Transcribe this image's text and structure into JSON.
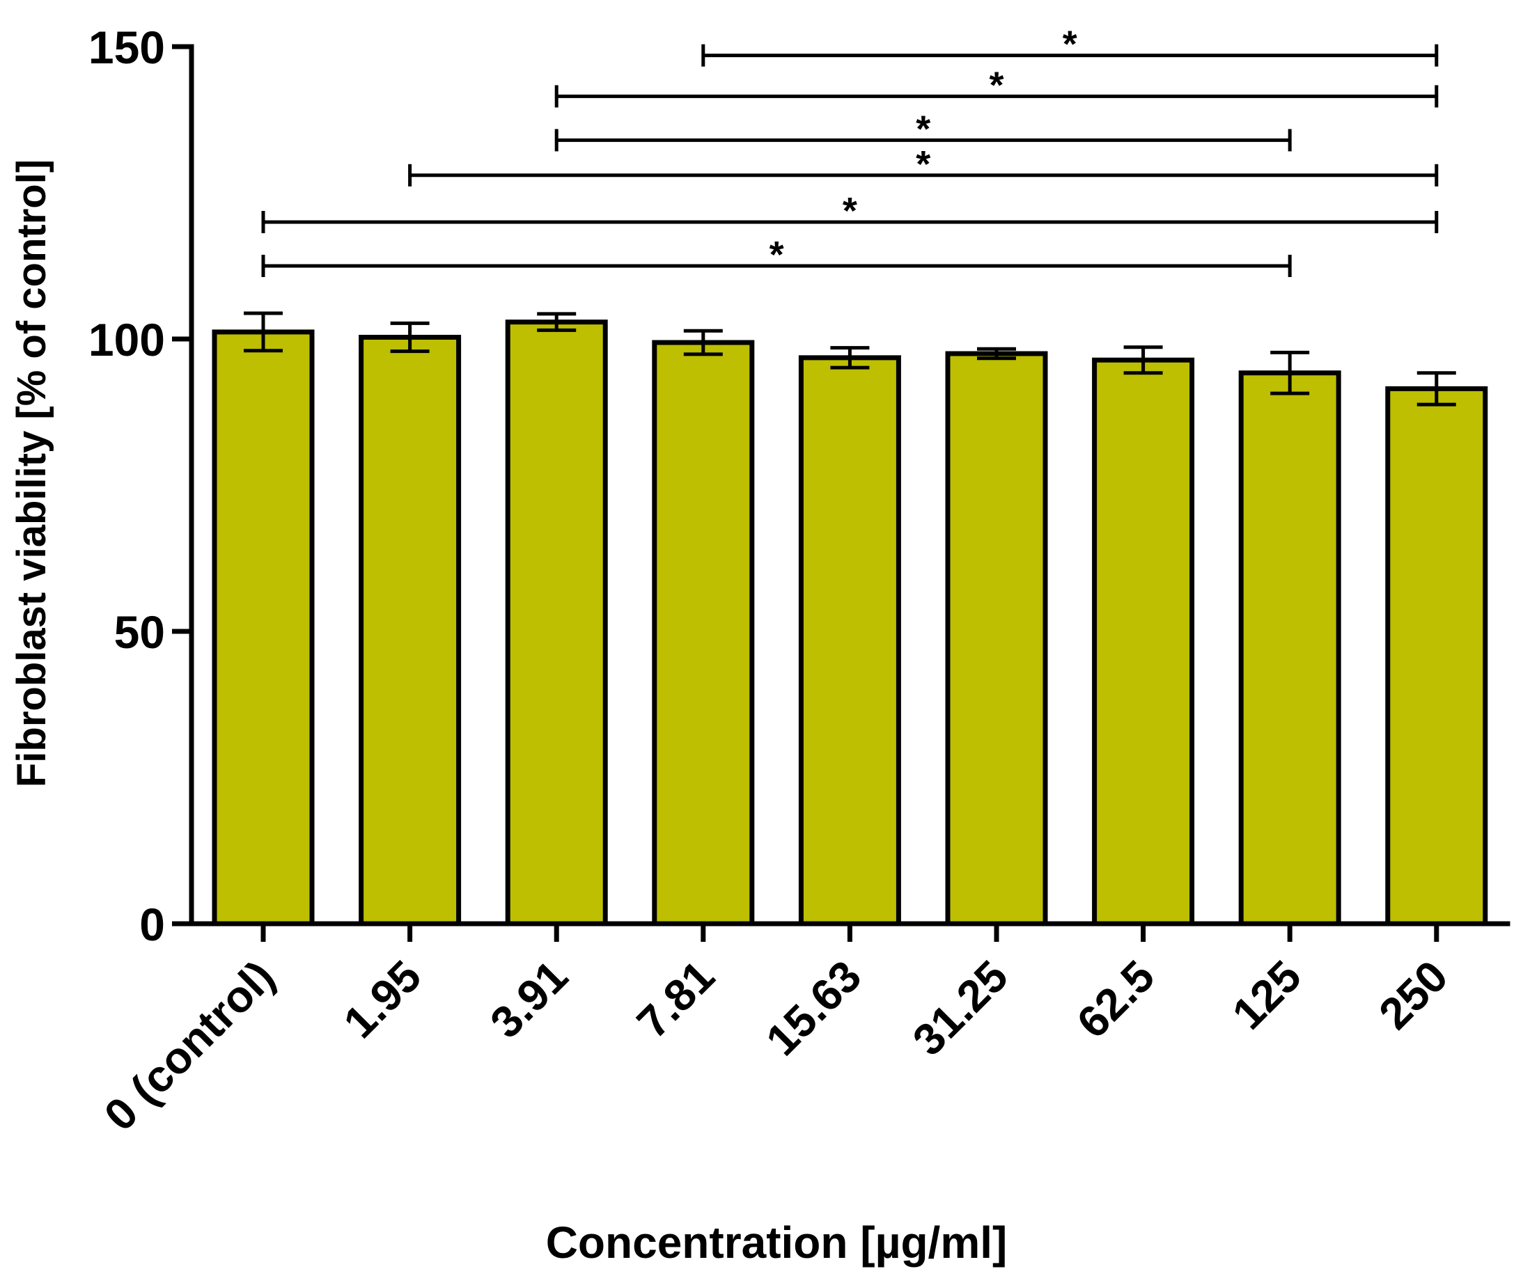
{
  "chart_data": {
    "type": "bar",
    "title": "",
    "xlabel": "Concentration [µg/ml]",
    "ylabel": "Fibroblast viability [% of control]",
    "ylim": [
      0,
      150
    ],
    "yticks": [
      0,
      50,
      100,
      150
    ],
    "ytick_labels": [
      "0",
      "50",
      "100",
      "150"
    ],
    "categories": [
      "0 (control)",
      "1.95",
      "3.91",
      "7.81",
      "15.63",
      "31.25",
      "62.5",
      "125",
      "250"
    ],
    "values": [
      101.2,
      100.3,
      102.9,
      99.4,
      96.8,
      97.5,
      96.4,
      94.2,
      91.5
    ],
    "errors": [
      3.2,
      2.4,
      1.4,
      2.0,
      1.7,
      0.8,
      2.2,
      3.5,
      2.7
    ],
    "bar_color": "#BDBF00",
    "grid": false,
    "significance": [
      {
        "from": 3,
        "to": 8,
        "y": 148.5,
        "label": "*"
      },
      {
        "from": 2,
        "to": 8,
        "y": 141.5,
        "label": "*"
      },
      {
        "from": 2,
        "to": 7,
        "y": 134.0,
        "label": "*"
      },
      {
        "from": 1,
        "to": 8,
        "y": 128.0,
        "label": "*"
      },
      {
        "from": 0,
        "to": 8,
        "y": 120.0,
        "label": "*"
      },
      {
        "from": 0,
        "to": 7,
        "y": 112.5,
        "label": "*"
      }
    ]
  }
}
